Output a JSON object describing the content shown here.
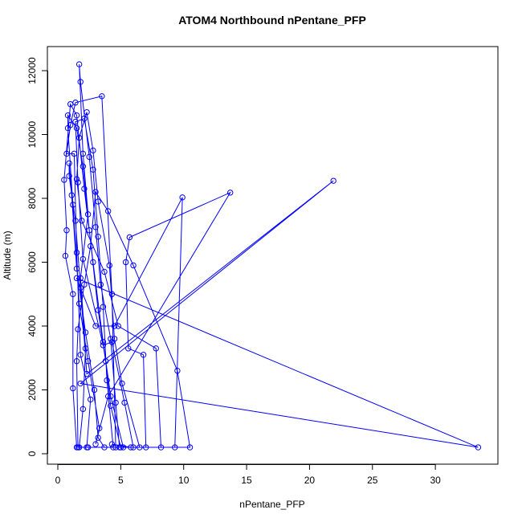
{
  "chart_data": {
    "type": "line",
    "title": "ATOM4 Northbound nPentane_PFP",
    "x_label": "nPentane_PFP",
    "y_label": "Altitude (m)",
    "xlim": [
      -0.83,
      34.97
    ],
    "ylim": [
      -327,
      12755
    ],
    "xticks": [
      0,
      5,
      10,
      15,
      20,
      25,
      30
    ],
    "yticks": [
      0,
      2000,
      4000,
      6000,
      8000,
      10000,
      12000
    ],
    "grid": false,
    "markers": true,
    "x": [
      1.7,
      2.0,
      2.2,
      1.8,
      2.4,
      2.0,
      1.7,
      1.8,
      2.5,
      3.0,
      3.4,
      4.2,
      4.6,
      4.9,
      5.2,
      4.2,
      3.6,
      2.8,
      2.1,
      1.5,
      1.0,
      0.5,
      0.7,
      0.6,
      1.2,
      1.2,
      1.5,
      2.3,
      2.6,
      1.8,
      1.5,
      1.3,
      0.7,
      1.0,
      1.4,
      3.5,
      4.3,
      4.6,
      6.0,
      5.3,
      4.3,
      3.6,
      2.0,
      1.6,
      1.4,
      2.1,
      2.8,
      3.2,
      3.6,
      3.9,
      4.4,
      7.0,
      6.8,
      5.6,
      5.4,
      5.7,
      13.7,
      4.0,
      3.0,
      3.3,
      2.4,
      1.7,
      1.2,
      0.8,
      0.8,
      1.5,
      2.0,
      2.5,
      3.2,
      3.8,
      4.2,
      5.0,
      8.2,
      7.8,
      4.8,
      3.7,
      1.9,
      1.5,
      1.7,
      2.3,
      2.8,
      3.2,
      4.1,
      4.5,
      5.1,
      6.5,
      9.3,
      9.9,
      4.5,
      3.0,
      1.5,
      33.4,
      1.8,
      21.9,
      2.3,
      1.8,
      1.4,
      0.9,
      0.9,
      1.1,
      1.5,
      2.2,
      2.9,
      3.2,
      3.7,
      10.5,
      9.5,
      6.0,
      4.0,
      3.0,
      2.6,
      2.1,
      1.6,
      1.5,
      1.6,
      2.4,
      5.8,
      4.3
    ],
    "series": [
      {
        "color": "#0000ff",
        "values": [
          200,
          1400,
          3300,
          5500,
          7500,
          9400,
          12200,
          11650,
          9300,
          7100,
          5300,
          3600,
          1600,
          200,
          200,
          1800,
          3500,
          6000,
          8300,
          10600,
          10950,
          8580,
          7000,
          6200,
          5000,
          2050,
          200,
          200,
          1700,
          3100,
          6300,
          9400,
          9400,
          10300,
          11000,
          11200,
          5000,
          200,
          200,
          1600,
          3500,
          3400,
          6100,
          8500,
          10400,
          10500,
          8900,
          6800,
          4600,
          2300,
          200,
          200,
          3100,
          3300,
          6000,
          6780,
          8180,
          1800,
          300,
          800,
          2900,
          4700,
          7800,
          10200,
          10600,
          10200,
          9000,
          7000,
          4500,
          2900,
          1500,
          200,
          200,
          3300,
          4000,
          5700,
          7300,
          8600,
          9900,
          10700,
          9500,
          7900,
          5900,
          3600,
          2200,
          200,
          200,
          8030,
          4000,
          4000,
          5500,
          200,
          2200,
          8550,
          2500,
          5200,
          7300,
          8700,
          9100,
          8100,
          5800,
          3800,
          2000,
          500,
          200,
          200,
          2600,
          5900,
          7600,
          8200,
          6500,
          5300,
          3900,
          2900,
          200,
          200,
          200,
          300
        ]
      }
    ]
  }
}
